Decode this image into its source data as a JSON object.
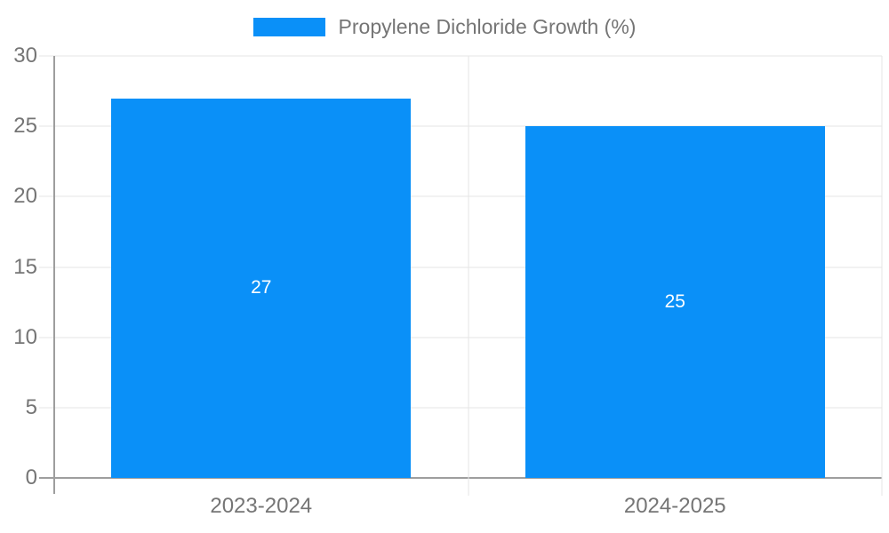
{
  "chart_data": {
    "type": "bar",
    "title": "",
    "legend": "Propylene Dichloride Growth (%)",
    "legend_position": "top",
    "categories": [
      "2023-2024",
      "2024-2025"
    ],
    "values": [
      27,
      25
    ],
    "value_labels": [
      "27",
      "25"
    ],
    "xlabel": "",
    "ylabel": "",
    "ylim": [
      0,
      30
    ],
    "yticks": [
      0,
      5,
      10,
      15,
      20,
      25,
      30
    ],
    "grid": true,
    "colors": {
      "bar": "#0a90f8",
      "value_label": "#ffffff",
      "axis": "#9e9e9e",
      "grid": "#e6e6e6",
      "text": "#757575",
      "background": "#ffffff"
    },
    "bar_width_fraction": 0.724
  }
}
